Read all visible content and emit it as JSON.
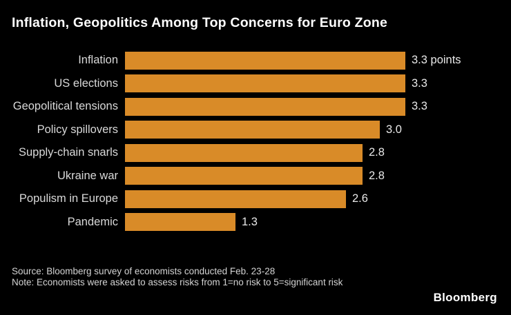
{
  "header": {
    "title": "Inflation, Geopolitics Among Top Concerns for Euro Zone"
  },
  "chart_data": {
    "type": "bar",
    "orientation": "horizontal",
    "title": "Inflation, Geopolitics Among Top Concerns for Euro Zone",
    "categories": [
      "Inflation",
      "US elections",
      "Geopolitical tensions",
      "Policy spillovers",
      "Supply-chain snarls",
      "Ukraine war",
      "Populism in Europe",
      "Pandemic"
    ],
    "values": [
      3.3,
      3.3,
      3.3,
      3.0,
      2.8,
      2.8,
      2.6,
      1.3
    ],
    "value_labels": [
      "3.3 points",
      "3.3",
      "3.3",
      "3.0",
      "2.8",
      "2.8",
      "2.6",
      "1.3"
    ],
    "unit": "points",
    "xlim": [
      0,
      3.3
    ],
    "grid": false,
    "legend": "none",
    "bar_color": "#d98b28",
    "background_color": "#000000",
    "label_color": "#d9d9d9",
    "value_color": "#e9e9e9"
  },
  "footer": {
    "source": "Source: Bloomberg survey of economists conducted Feb. 23-28",
    "note": "Note: Economists were asked to assess risks from 1=no risk to 5=significant risk",
    "logo": "Bloomberg"
  }
}
